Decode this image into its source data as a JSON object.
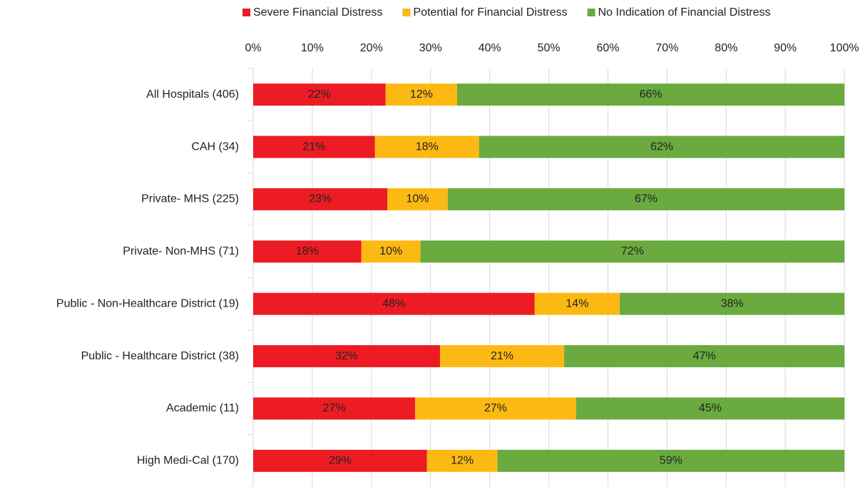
{
  "chart_data": {
    "type": "stacked_barh",
    "categories": [
      "All Hospitals (406)",
      "CAH (34)",
      "Private- MHS (225)",
      "Private- Non-MHS (71)",
      "Public - Non-Healthcare District (19)",
      "Public - Healthcare District (38)",
      "Academic (11)",
      "High Medi-Cal (170)"
    ],
    "series": [
      {
        "name": "Severe Financial Distress",
        "color": "#ed1c24",
        "values": [
          22.4,
          20.6,
          22.7,
          18.3,
          47.6,
          31.6,
          27.4,
          29.4
        ],
        "value_labels": [
          "22%",
          "21%",
          "23%",
          "18%",
          "48%",
          "32%",
          "27%",
          "29%"
        ]
      },
      {
        "name": "Potential for Financial Distress",
        "color": "#fdb913",
        "values": [
          12.1,
          17.6,
          10.2,
          10.0,
          14.4,
          21.0,
          27.2,
          11.9
        ],
        "value_labels": [
          "12%",
          "18%",
          "10%",
          "10%",
          "14%",
          "21%",
          "27%",
          "12%"
        ]
      },
      {
        "name": "No Indication of Financial Distress",
        "color": "#6aaa3f",
        "values": [
          65.5,
          61.8,
          67.1,
          71.7,
          38.0,
          47.4,
          45.4,
          58.7
        ],
        "value_labels": [
          "66%",
          "62%",
          "67%",
          "72%",
          "38%",
          "47%",
          "45%",
          "59%"
        ]
      }
    ],
    "xlim": [
      0,
      100
    ],
    "xticks": [
      {
        "value": 0,
        "label": "0%"
      },
      {
        "value": 10,
        "label": "10%"
      },
      {
        "value": 20,
        "label": "20%"
      },
      {
        "value": 30,
        "label": "30%"
      },
      {
        "value": 40,
        "label": "40%"
      },
      {
        "value": 50,
        "label": "50%"
      },
      {
        "value": 60,
        "label": "60%"
      },
      {
        "value": 70,
        "label": "70%"
      },
      {
        "value": 80,
        "label": "80%"
      },
      {
        "value": 90,
        "label": "90%"
      },
      {
        "value": 100,
        "label": "100%"
      }
    ],
    "grid": true,
    "legend": "top"
  }
}
